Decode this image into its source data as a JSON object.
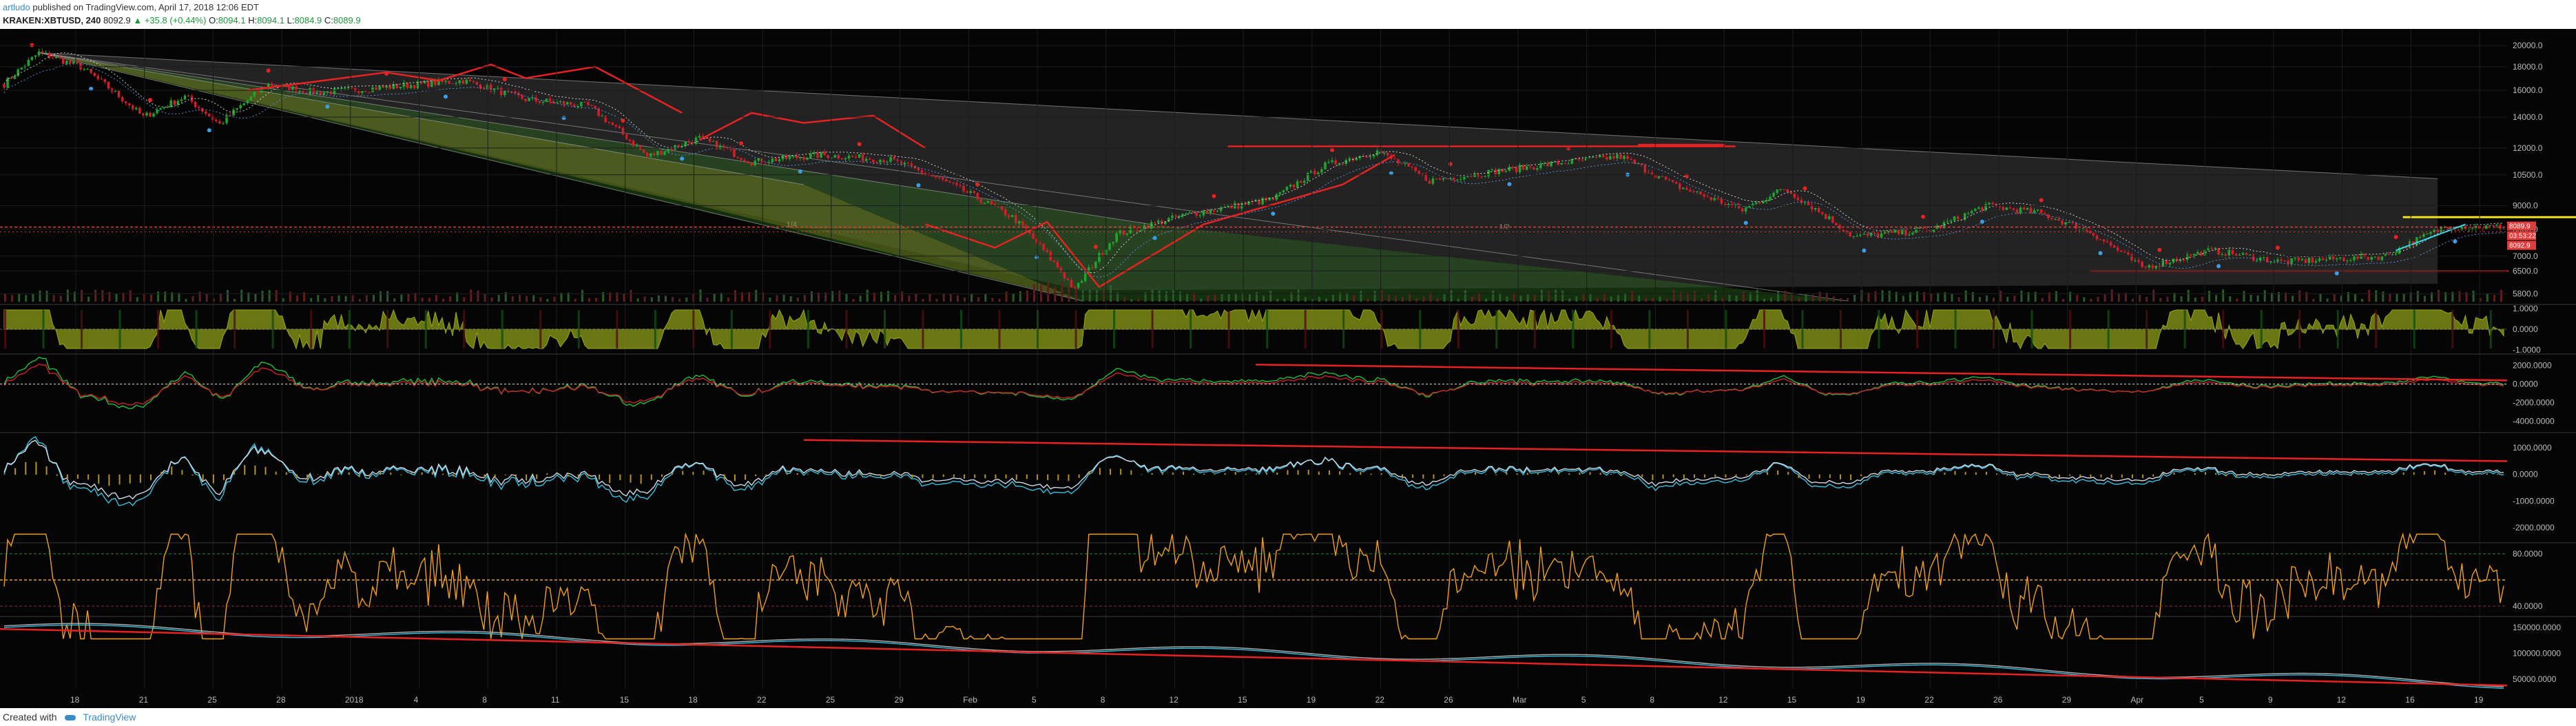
{
  "header": {
    "author": "artludo",
    "published": "published on TradingView.com, April 17, 2018 12:06 EDT",
    "symbol": "KRAKEN:XBTUSD, 240",
    "price": "8092.9",
    "change": "+35.8 (+0.44%)",
    "open_label": "O:",
    "open": "8094.1",
    "high_label": "H:",
    "high": "8094.1",
    "low_label": "L:",
    "low": "8084.9",
    "close_label": "C:",
    "close": "8089.9"
  },
  "footer": {
    "created_with": "Created with",
    "brand": "TradingView"
  },
  "colors": {
    "bull": "#1fa52e",
    "bear": "#d11f2a",
    "background": "#050505",
    "grid": "#1c1c1c",
    "axis_text": "#bbbbbb",
    "accent": "#3a8bc9"
  },
  "badges": [
    {
      "text": "8089.9",
      "color": "#e03c3c"
    },
    {
      "text": "03:53:22",
      "color": "#e03c3c"
    },
    {
      "text": "8092.9",
      "color": "#e03c3c"
    }
  ],
  "chart_data": [
    {
      "type": "candlestick",
      "x_tick_labels": [
        "18",
        "21",
        "25",
        "28",
        "2018",
        "4",
        "8",
        "11",
        "15",
        "18",
        "22",
        "25",
        "29",
        "Feb",
        "5",
        "8",
        "12",
        "15",
        "19",
        "22",
        "26",
        "Mar",
        "5",
        "8",
        "12",
        "15",
        "19",
        "22",
        "26",
        "29",
        "Apr",
        "5",
        "9",
        "12",
        "16",
        "19"
      ],
      "y_ticks": [
        "20000.0",
        "18000.0",
        "16000.0",
        "14000.0",
        "12000.0",
        "10500.0",
        "9000.0",
        "8000.0",
        "7000.0",
        "6500.0",
        "5800.0"
      ],
      "y_values": [
        20000,
        18000,
        16000,
        14000,
        12000,
        10500,
        9000,
        8000,
        7000,
        6500,
        5800
      ],
      "keypoints": [
        {
          "i": 0,
          "p": 16500
        },
        {
          "i": 10,
          "p": 19300
        },
        {
          "i": 22,
          "p": 18000
        },
        {
          "i": 40,
          "p": 14000
        },
        {
          "i": 52,
          "p": 15500
        },
        {
          "i": 62,
          "p": 13500
        },
        {
          "i": 76,
          "p": 16500
        },
        {
          "i": 90,
          "p": 15800
        },
        {
          "i": 108,
          "p": 16200
        },
        {
          "i": 132,
          "p": 16800
        },
        {
          "i": 150,
          "p": 15300
        },
        {
          "i": 168,
          "p": 14800
        },
        {
          "i": 185,
          "p": 11500
        },
        {
          "i": 200,
          "p": 12600
        },
        {
          "i": 215,
          "p": 11200
        },
        {
          "i": 235,
          "p": 11600
        },
        {
          "i": 255,
          "p": 11300
        },
        {
          "i": 270,
          "p": 10200
        },
        {
          "i": 290,
          "p": 8500
        },
        {
          "i": 308,
          "p": 5900
        },
        {
          "i": 320,
          "p": 7800
        },
        {
          "i": 340,
          "p": 8600
        },
        {
          "i": 365,
          "p": 9300
        },
        {
          "i": 380,
          "p": 11000
        },
        {
          "i": 395,
          "p": 11800
        },
        {
          "i": 410,
          "p": 10200
        },
        {
          "i": 430,
          "p": 10700
        },
        {
          "i": 450,
          "p": 11200
        },
        {
          "i": 465,
          "p": 11500
        },
        {
          "i": 480,
          "p": 10000
        },
        {
          "i": 500,
          "p": 8800
        },
        {
          "i": 512,
          "p": 9800
        },
        {
          "i": 532,
          "p": 7700
        },
        {
          "i": 555,
          "p": 8000
        },
        {
          "i": 570,
          "p": 9000
        },
        {
          "i": 585,
          "p": 8700
        },
        {
          "i": 600,
          "p": 7900
        },
        {
          "i": 615,
          "p": 6600
        },
        {
          "i": 635,
          "p": 7200
        },
        {
          "i": 655,
          "p": 6800
        },
        {
          "i": 685,
          "p": 7000
        },
        {
          "i": 702,
          "p": 8100
        },
        {
          "i": 720,
          "p": 8090
        }
      ]
    },
    {
      "type": "area",
      "name_hint": "trend oscillator",
      "y_ticks": [
        "1.0000",
        "0.0000",
        "-1.0000"
      ],
      "y_values": [
        1,
        0,
        -1
      ]
    },
    {
      "type": "line",
      "y_ticks": [
        "2000.0000",
        "0.0000",
        "-2000.0000",
        "-4000.0000"
      ],
      "y_values": [
        2000,
        0,
        -2000,
        -4000
      ]
    },
    {
      "type": "line",
      "y_ticks": [
        "1000.0000",
        "0.0000",
        "-1000.0000",
        "-2000.0000"
      ],
      "y_values": [
        1000,
        0,
        -1000,
        -2000
      ]
    },
    {
      "type": "line",
      "y_ticks": [
        "80.0000",
        "40.0000"
      ],
      "y_values": [
        80,
        40
      ]
    },
    {
      "type": "line",
      "y_ticks": [
        "150000.0000",
        "100000.0000",
        "50000.0000"
      ],
      "y_values": [
        150000,
        100000,
        50000
      ]
    }
  ]
}
